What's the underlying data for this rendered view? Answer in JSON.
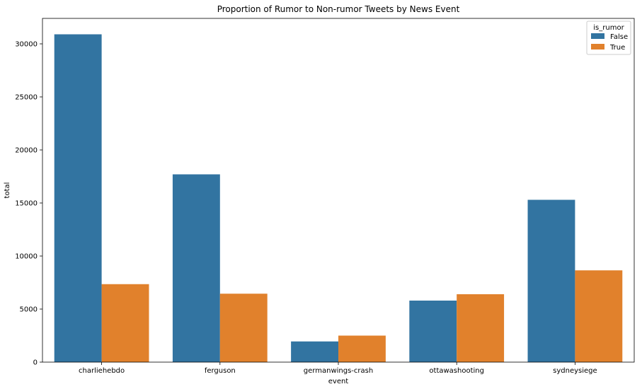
{
  "chart_data": {
    "type": "bar",
    "title": "Proportion of Rumor to Non-rumor Tweets by News Event",
    "xlabel": "event",
    "ylabel": "total",
    "categories": [
      "charliehebdo",
      "ferguson",
      "germanwings-crash",
      "ottawashooting",
      "sydneysiege"
    ],
    "series": [
      {
        "name": "False",
        "values": [
          30900,
          17700,
          1950,
          5800,
          15300
        ],
        "color": "#3274a1"
      },
      {
        "name": "True",
        "values": [
          7350,
          6450,
          2500,
          6400,
          8650
        ],
        "color": "#e1812c"
      }
    ],
    "ylim": [
      0,
      32400
    ],
    "yticks": [
      0,
      5000,
      10000,
      15000,
      20000,
      25000,
      30000
    ],
    "grid": false,
    "legend": {
      "title": "is_rumor",
      "position": "top-right"
    }
  }
}
